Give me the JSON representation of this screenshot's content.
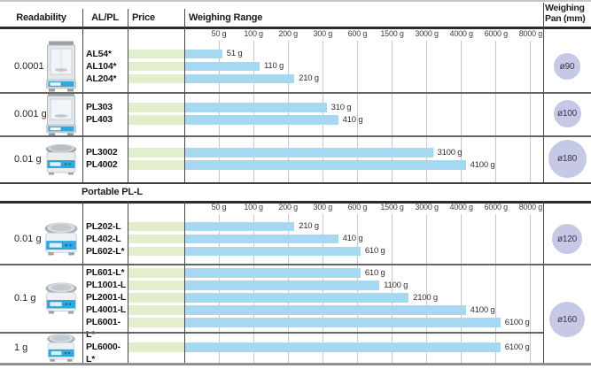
{
  "header": {
    "readability": "Readability",
    "model_col": "AL/PL",
    "price": "Price",
    "range": "Weighing Range",
    "pan_line1": "Weighing",
    "pan_line2": "Pan (mm)"
  },
  "scale": {
    "tick_labels": [
      "50 g",
      "100 g",
      "200 g",
      "300 g",
      "600 g",
      "1500 g",
      "3000 g",
      "4000 g",
      "6000 g",
      "8000 g"
    ],
    "tick_values": [
      50,
      100,
      200,
      300,
      600,
      1500,
      3000,
      4000,
      6000,
      8000
    ]
  },
  "sections": [
    {
      "title": "",
      "groups": [
        {
          "readability": "0.0001 g",
          "balance_type": "analytical",
          "pan_label": "ø90",
          "pan_mm": 90,
          "models": [
            {
              "name": "AL54*",
              "max_g": 51,
              "range_label": "51 g"
            },
            {
              "name": "AL104*",
              "max_g": 110,
              "range_label": "110 g"
            },
            {
              "name": "AL204*",
              "max_g": 210,
              "range_label": "210 g"
            }
          ]
        },
        {
          "readability": "0.001 g",
          "balance_type": "draftshield",
          "pan_label": "ø100",
          "pan_mm": 100,
          "models": [
            {
              "name": "PL303",
              "max_g": 310,
              "range_label": "310 g"
            },
            {
              "name": "PL403",
              "max_g": 410,
              "range_label": "410 g"
            }
          ]
        },
        {
          "readability": "0.01 g",
          "balance_type": "compact",
          "pan_label": "ø180",
          "pan_mm": 180,
          "models": [
            {
              "name": "PL3002",
              "max_g": 3100,
              "range_label": "3100 g"
            },
            {
              "name": "PL4002",
              "max_g": 4100,
              "range_label": "4100 g"
            }
          ]
        }
      ]
    },
    {
      "title": "Portable PL-L",
      "groups": [
        {
          "readability": "0.01 g",
          "balance_type": "portable",
          "pan_label": "ø120",
          "pan_mm": 120,
          "models": [
            {
              "name": "PL202-L",
              "max_g": 210,
              "range_label": "210 g"
            },
            {
              "name": "PL402-L",
              "max_g": 410,
              "range_label": "410 g"
            },
            {
              "name": "PL602-L*",
              "max_g": 610,
              "range_label": "610 g"
            }
          ]
        },
        {
          "readability": "0.1 g",
          "balance_type": "portable",
          "pan_label": "ø160",
          "pan_mm": 160,
          "pan_spans_next_group": true,
          "models": [
            {
              "name": "PL601-L*",
              "max_g": 610,
              "range_label": "610 g"
            },
            {
              "name": "PL1001-L",
              "max_g": 1100,
              "range_label": "1100 g"
            },
            {
              "name": "PL2001-L",
              "max_g": 2100,
              "range_label": "2100 g"
            },
            {
              "name": "PL4001-L",
              "max_g": 4100,
              "range_label": "4100 g"
            },
            {
              "name": "PL6001-L*",
              "max_g": 6100,
              "range_label": "6100 g"
            }
          ]
        },
        {
          "readability": "1 g",
          "balance_type": "portable",
          "pan_label": null,
          "pan_mm": null,
          "models": [
            {
              "name": "PL6000-L*",
              "max_g": 6100,
              "range_label": "6100 g"
            }
          ]
        }
      ]
    }
  ],
  "colors": {
    "bar_blue": "#a7d8f2",
    "bar_green": "#e3eecd",
    "pan_circle": "#c6c9e5",
    "gridline": "#c9c9c9",
    "header_border": "#2b2b2b",
    "group_border": "#636567",
    "bottom_border": "#8f9193",
    "balance_accent_blue": "#2ea9dd"
  },
  "chart_data": {
    "type": "bar",
    "orientation": "horizontal",
    "title": "Weighing Range",
    "unit": "g",
    "x_ticks_g": [
      50,
      100,
      200,
      300,
      600,
      1500,
      3000,
      4000,
      6000,
      8000
    ],
    "x_scale": "piecewise-linear between evenly spaced ticks",
    "legend_position": "none",
    "grid": true,
    "series": [
      {
        "section": "",
        "readability": "0.0001 g",
        "model": "AL54*",
        "weighing_range_max_g": 51,
        "pan_mm": 90
      },
      {
        "section": "",
        "readability": "0.0001 g",
        "model": "AL104*",
        "weighing_range_max_g": 110,
        "pan_mm": 90
      },
      {
        "section": "",
        "readability": "0.0001 g",
        "model": "AL204*",
        "weighing_range_max_g": 210,
        "pan_mm": 90
      },
      {
        "section": "",
        "readability": "0.001 g",
        "model": "PL303",
        "weighing_range_max_g": 310,
        "pan_mm": 100
      },
      {
        "section": "",
        "readability": "0.001 g",
        "model": "PL403",
        "weighing_range_max_g": 410,
        "pan_mm": 100
      },
      {
        "section": "",
        "readability": "0.01 g",
        "model": "PL3002",
        "weighing_range_max_g": 3100,
        "pan_mm": 180
      },
      {
        "section": "",
        "readability": "0.01 g",
        "model": "PL4002",
        "weighing_range_max_g": 4100,
        "pan_mm": 180
      },
      {
        "section": "Portable PL-L",
        "readability": "0.01 g",
        "model": "PL202-L",
        "weighing_range_max_g": 210,
        "pan_mm": 120
      },
      {
        "section": "Portable PL-L",
        "readability": "0.01 g",
        "model": "PL402-L",
        "weighing_range_max_g": 410,
        "pan_mm": 120
      },
      {
        "section": "Portable PL-L",
        "readability": "0.01 g",
        "model": "PL602-L*",
        "weighing_range_max_g": 610,
        "pan_mm": 120
      },
      {
        "section": "Portable PL-L",
        "readability": "0.1 g",
        "model": "PL601-L*",
        "weighing_range_max_g": 610,
        "pan_mm": 160
      },
      {
        "section": "Portable PL-L",
        "readability": "0.1 g",
        "model": "PL1001-L",
        "weighing_range_max_g": 1100,
        "pan_mm": 160
      },
      {
        "section": "Portable PL-L",
        "readability": "0.1 g",
        "model": "PL2001-L",
        "weighing_range_max_g": 2100,
        "pan_mm": 160
      },
      {
        "section": "Portable PL-L",
        "readability": "0.1 g",
        "model": "PL4001-L",
        "weighing_range_max_g": 4100,
        "pan_mm": 160
      },
      {
        "section": "Portable PL-L",
        "readability": "0.1 g",
        "model": "PL6001-L*",
        "weighing_range_max_g": 6100,
        "pan_mm": 160
      },
      {
        "section": "Portable PL-L",
        "readability": "1 g",
        "model": "PL6000-L*",
        "weighing_range_max_g": 6100,
        "pan_mm": 160
      }
    ]
  }
}
